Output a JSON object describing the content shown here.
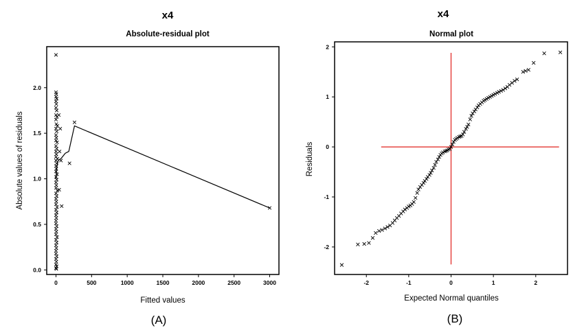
{
  "chart_data": [
    {
      "type": "scatter",
      "title": "x4",
      "subtitle": "Absolute-residual plot",
      "xlabel": "Fitted values",
      "ylabel": "Absolute values of residuals",
      "panel_label": "(A)",
      "xlim": [
        -130,
        3130
      ],
      "ylim": [
        -0.05,
        2.45
      ],
      "xticks": [
        0,
        500,
        1000,
        1500,
        2000,
        2500,
        3000
      ],
      "yticks": [
        0.0,
        0.5,
        1.0,
        1.5,
        2.0
      ],
      "ytick_labels": [
        "0.0",
        "0.5",
        "1.0",
        "1.5",
        "2.0"
      ],
      "marker": "x",
      "points": [
        [
          0,
          2.36
        ],
        [
          0,
          1.95
        ],
        [
          5,
          1.93
        ],
        [
          0,
          1.9
        ],
        [
          10,
          1.88
        ],
        [
          0,
          1.85
        ],
        [
          5,
          1.82
        ],
        [
          0,
          1.78
        ],
        [
          10,
          1.75
        ],
        [
          0,
          1.7
        ],
        [
          15,
          1.68
        ],
        [
          0,
          1.65
        ],
        [
          5,
          1.6
        ],
        [
          20,
          1.58
        ],
        [
          0,
          1.55
        ],
        [
          10,
          1.52
        ],
        [
          0,
          1.48
        ],
        [
          5,
          1.45
        ],
        [
          0,
          1.42
        ],
        [
          15,
          1.4
        ],
        [
          0,
          1.36
        ],
        [
          10,
          1.33
        ],
        [
          0,
          1.3
        ],
        [
          5,
          1.27
        ],
        [
          0,
          1.24
        ],
        [
          20,
          1.22
        ],
        [
          0,
          1.2
        ],
        [
          10,
          1.17
        ],
        [
          0,
          1.14
        ],
        [
          5,
          1.11
        ],
        [
          0,
          1.08
        ],
        [
          15,
          1.05
        ],
        [
          0,
          1.02
        ],
        [
          10,
          0.99
        ],
        [
          0,
          0.96
        ],
        [
          5,
          0.93
        ],
        [
          0,
          0.9
        ],
        [
          20,
          0.87
        ],
        [
          0,
          0.84
        ],
        [
          10,
          0.81
        ],
        [
          0,
          0.78
        ],
        [
          5,
          0.75
        ],
        [
          0,
          0.72
        ],
        [
          15,
          0.69
        ],
        [
          0,
          0.66
        ],
        [
          10,
          0.63
        ],
        [
          0,
          0.6
        ],
        [
          5,
          0.57
        ],
        [
          0,
          0.54
        ],
        [
          0,
          0.51
        ],
        [
          10,
          0.48
        ],
        [
          0,
          0.45
        ],
        [
          5,
          0.42
        ],
        [
          0,
          0.39
        ],
        [
          15,
          0.36
        ],
        [
          0,
          0.33
        ],
        [
          10,
          0.3
        ],
        [
          0,
          0.27
        ],
        [
          5,
          0.24
        ],
        [
          0,
          0.21
        ],
        [
          0,
          0.18
        ],
        [
          10,
          0.15
        ],
        [
          0,
          0.12
        ],
        [
          5,
          0.09
        ],
        [
          0,
          0.06
        ],
        [
          10,
          0.04
        ],
        [
          0,
          0.02
        ],
        [
          5,
          0.01
        ],
        [
          40,
          1.7
        ],
        [
          60,
          1.55
        ],
        [
          50,
          1.3
        ],
        [
          70,
          1.2
        ],
        [
          80,
          0.7
        ],
        [
          45,
          0.88
        ],
        [
          190,
          1.17
        ],
        [
          260,
          1.62
        ],
        [
          3000,
          0.68
        ]
      ],
      "lowess_line": [
        [
          0,
          1.0
        ],
        [
          10,
          1.12
        ],
        [
          30,
          1.2
        ],
        [
          70,
          1.22
        ],
        [
          130,
          1.28
        ],
        [
          180,
          1.3
        ],
        [
          260,
          1.58
        ],
        [
          3000,
          0.68
        ]
      ]
    },
    {
      "type": "scatter",
      "title": "x4",
      "subtitle": "Normal plot",
      "xlabel": "Expected Normal quantiles",
      "ylabel": "Residuals",
      "panel_label": "(B)",
      "xlim": [
        -2.75,
        2.75
      ],
      "ylim": [
        -2.55,
        2.1
      ],
      "xticks": [
        -2,
        -1,
        0,
        1,
        2
      ],
      "yticks": [
        -2,
        -1,
        0,
        1,
        2
      ],
      "marker": "x",
      "reference_lines": {
        "x": 0,
        "y": 0,
        "color": "#e0201b"
      },
      "reference_extent": {
        "x": [
          -1.65,
          2.55
        ],
        "y": [
          -2.35,
          1.88
        ]
      },
      "points": [
        [
          -2.58,
          -2.36
        ],
        [
          -2.2,
          -1.95
        ],
        [
          -2.05,
          -1.94
        ],
        [
          -1.94,
          -1.92
        ],
        [
          -1.85,
          -1.82
        ],
        [
          -1.78,
          -1.72
        ],
        [
          -1.7,
          -1.68
        ],
        [
          -1.63,
          -1.66
        ],
        [
          -1.56,
          -1.63
        ],
        [
          -1.5,
          -1.6
        ],
        [
          -1.44,
          -1.57
        ],
        [
          -1.38,
          -1.52
        ],
        [
          -1.33,
          -1.47
        ],
        [
          -1.28,
          -1.42
        ],
        [
          -1.23,
          -1.38
        ],
        [
          -1.18,
          -1.33
        ],
        [
          -1.13,
          -1.29
        ],
        [
          -1.09,
          -1.25
        ],
        [
          -1.04,
          -1.22
        ],
        [
          -1.0,
          -1.19
        ],
        [
          -0.96,
          -1.17
        ],
        [
          -0.92,
          -1.14
        ],
        [
          -0.88,
          -1.1
        ],
        [
          -0.84,
          -1.02
        ],
        [
          -0.8,
          -0.92
        ],
        [
          -0.77,
          -0.85
        ],
        [
          -0.73,
          -0.8
        ],
        [
          -0.69,
          -0.76
        ],
        [
          -0.65,
          -0.72
        ],
        [
          -0.62,
          -0.68
        ],
        [
          -0.58,
          -0.64
        ],
        [
          -0.55,
          -0.6
        ],
        [
          -0.51,
          -0.56
        ],
        [
          -0.48,
          -0.52
        ],
        [
          -0.45,
          -0.47
        ],
        [
          -0.41,
          -0.42
        ],
        [
          -0.38,
          -0.36
        ],
        [
          -0.35,
          -0.3
        ],
        [
          -0.31,
          -0.25
        ],
        [
          -0.28,
          -0.2
        ],
        [
          -0.25,
          -0.16
        ],
        [
          -0.22,
          -0.13
        ],
        [
          -0.19,
          -0.11
        ],
        [
          -0.15,
          -0.09
        ],
        [
          -0.12,
          -0.08
        ],
        [
          -0.09,
          -0.07
        ],
        [
          -0.06,
          -0.05
        ],
        [
          -0.03,
          -0.04
        ],
        [
          0.0,
          0.0
        ],
        [
          0.03,
          0.05
        ],
        [
          0.06,
          0.1
        ],
        [
          0.09,
          0.14
        ],
        [
          0.12,
          0.16
        ],
        [
          0.15,
          0.18
        ],
        [
          0.19,
          0.2
        ],
        [
          0.22,
          0.21
        ],
        [
          0.25,
          0.22
        ],
        [
          0.28,
          0.25
        ],
        [
          0.31,
          0.3
        ],
        [
          0.35,
          0.36
        ],
        [
          0.38,
          0.4
        ],
        [
          0.41,
          0.45
        ],
        [
          0.45,
          0.55
        ],
        [
          0.48,
          0.62
        ],
        [
          0.51,
          0.67
        ],
        [
          0.55,
          0.71
        ],
        [
          0.58,
          0.75
        ],
        [
          0.62,
          0.79
        ],
        [
          0.65,
          0.83
        ],
        [
          0.69,
          0.86
        ],
        [
          0.73,
          0.89
        ],
        [
          0.77,
          0.92
        ],
        [
          0.8,
          0.94
        ],
        [
          0.84,
          0.96
        ],
        [
          0.88,
          0.98
        ],
        [
          0.92,
          1.0
        ],
        [
          0.96,
          1.02
        ],
        [
          1.0,
          1.04
        ],
        [
          1.04,
          1.06
        ],
        [
          1.09,
          1.08
        ],
        [
          1.13,
          1.1
        ],
        [
          1.18,
          1.12
        ],
        [
          1.23,
          1.14
        ],
        [
          1.28,
          1.17
        ],
        [
          1.33,
          1.2
        ],
        [
          1.38,
          1.24
        ],
        [
          1.44,
          1.28
        ],
        [
          1.5,
          1.32
        ],
        [
          1.56,
          1.35
        ],
        [
          1.7,
          1.5
        ],
        [
          1.76,
          1.52
        ],
        [
          1.83,
          1.54
        ],
        [
          1.95,
          1.68
        ],
        [
          2.2,
          1.87
        ],
        [
          2.58,
          1.89
        ]
      ]
    }
  ]
}
